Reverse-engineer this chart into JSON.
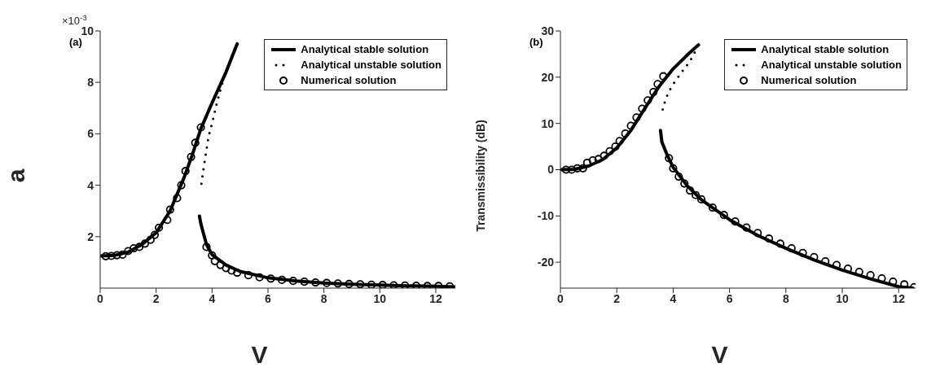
{
  "chart_data": [
    {
      "type": "line",
      "xlabel": "V",
      "ylabel": "a",
      "annotations": [
        "(a)",
        "×10$^{-3}$"
      ],
      "xlim": [
        0,
        12.7
      ],
      "xticks": [
        0,
        2,
        4,
        6,
        8,
        10,
        12
      ],
      "ylim": [
        0,
        10
      ],
      "yticks": [
        2,
        4,
        6,
        8,
        10
      ],
      "legend": "top right",
      "grid": false,
      "series": [
        {
          "name": "Analytical stable solution",
          "type": "line",
          "line_style": "solid",
          "marker": "none",
          "color": "#000000",
          "x": [
            0,
            0.5,
            1,
            1.5,
            2,
            2.5,
            3,
            3.3,
            3.6,
            4,
            4.5,
            4.9
          ],
          "values": [
            1.25,
            1.27,
            1.4,
            1.7,
            2.15,
            3.0,
            4.3,
            5.2,
            6.2,
            7.2,
            8.4,
            9.5
          ]
        },
        {
          "type": "line",
          "line_style": "solid",
          "marker": "none",
          "color": "#000000",
          "x": [
            3.55,
            3.6,
            3.8,
            4,
            4.5,
            5,
            6,
            7,
            8,
            9,
            10,
            11,
            12,
            12.7
          ],
          "values": [
            2.8,
            2.5,
            1.7,
            1.3,
            0.9,
            0.65,
            0.4,
            0.28,
            0.2,
            0.15,
            0.12,
            0.09,
            0.07,
            0.05
          ]
        },
        {
          "name": "Analytical unstable solution",
          "type": "line",
          "line_style": "dotted",
          "marker": "none",
          "color": "#000000",
          "x": [
            3.62,
            3.68,
            3.74,
            3.88,
            4.02,
            4.15,
            4.34,
            4.54,
            4.73,
            4.89
          ],
          "values": [
            4.06,
            4.54,
            4.96,
            5.92,
            6.48,
            7.1,
            7.88,
            8.5,
            9.08,
            9.53
          ]
        },
        {
          "name": "Numerical solution",
          "type": "scatter",
          "marker": "circle",
          "color": "#000000",
          "x": [
            0.2,
            0.4,
            0.6,
            0.8,
            1.0,
            1.2,
            1.4,
            1.6,
            1.8,
            1.95,
            2.1,
            2.4,
            2.5,
            2.75,
            2.9,
            3.05,
            3.25,
            3.4,
            3.6,
            3.8,
            4.0,
            4.1,
            4.3,
            4.5,
            4.7,
            4.9,
            5.3,
            5.7,
            6.1,
            6.5,
            6.9,
            7.3,
            7.7,
            8.1,
            8.5,
            8.9,
            9.3,
            9.7,
            10.1,
            10.5,
            10.9,
            11.3,
            11.7,
            12.1,
            12.5
          ],
          "values": [
            1.24,
            1.25,
            1.28,
            1.3,
            1.44,
            1.55,
            1.6,
            1.73,
            1.88,
            2.07,
            2.35,
            2.65,
            3.05,
            3.5,
            4.0,
            4.55,
            5.1,
            5.65,
            6.25,
            1.6,
            1.27,
            1.05,
            0.9,
            0.78,
            0.68,
            0.6,
            0.5,
            0.42,
            0.37,
            0.32,
            0.28,
            0.25,
            0.22,
            0.2,
            0.18,
            0.16,
            0.15,
            0.13,
            0.12,
            0.11,
            0.1,
            0.09,
            0.08,
            0.08,
            0.07
          ]
        }
      ]
    },
    {
      "type": "line",
      "xlabel": "V",
      "ylabel": "Transmissibility (dB)",
      "annotations": [
        "(b)"
      ],
      "xlim": [
        0,
        12.6
      ],
      "xticks": [
        0,
        2,
        4,
        6,
        8,
        10,
        12
      ],
      "ylim": [
        -25.6,
        30
      ],
      "yticks": [
        -20,
        -10,
        0,
        10,
        20,
        30
      ],
      "legend": "top right",
      "grid": false,
      "series": [
        {
          "name": "Analytical stable solution",
          "type": "line",
          "line_style": "solid",
          "marker": "none",
          "color": "#000000",
          "x": [
            0,
            0.5,
            1,
            1.5,
            2,
            2.5,
            3,
            3.5,
            4,
            4.5,
            4.9
          ],
          "values": [
            0,
            0.1,
            0.8,
            2.2,
            4.7,
            8.5,
            13.3,
            18,
            21.8,
            24.8,
            27
          ]
        },
        {
          "type": "line",
          "line_style": "solid",
          "marker": "none",
          "color": "#000000",
          "x": [
            3.55,
            3.6,
            3.8,
            4,
            4.5,
            5,
            6,
            7,
            8,
            9,
            10,
            11,
            12,
            12.5
          ],
          "values": [
            8.5,
            6,
            3,
            0.5,
            -3.5,
            -6.5,
            -10.8,
            -14.2,
            -17,
            -19.5,
            -21.7,
            -23.6,
            -25.3,
            -25.6
          ]
        },
        {
          "name": "Analytical unstable solution",
          "type": "line",
          "line_style": "dotted",
          "marker": "none",
          "color": "#000000",
          "x": [
            3.63,
            3.72,
            3.82,
            3.95,
            4.1,
            4.25,
            4.4,
            4.58,
            4.75,
            4.9
          ],
          "values": [
            13,
            15,
            16.5,
            18,
            19.4,
            20.6,
            21.9,
            23.3,
            25.2,
            27
          ]
        },
        {
          "name": "Numerical solution",
          "type": "scatter",
          "marker": "circle",
          "color": "#000000",
          "x": [
            0.2,
            0.4,
            0.6,
            0.8,
            0.95,
            1.15,
            1.35,
            1.55,
            1.75,
            1.95,
            2.1,
            2.3,
            2.5,
            2.7,
            2.9,
            3.1,
            3.3,
            3.45,
            3.65,
            3.85,
            4.0,
            4.2,
            4.4,
            4.6,
            4.8,
            5.0,
            5.4,
            5.8,
            6.2,
            6.6,
            7.0,
            7.4,
            7.8,
            8.2,
            8.6,
            9.0,
            9.4,
            9.8,
            10.2,
            10.6,
            11.0,
            11.4,
            11.8,
            12.2,
            12.55
          ],
          "values": [
            0,
            0,
            0.3,
            0.3,
            1.5,
            2,
            2.3,
            3,
            4,
            5,
            6.2,
            7.8,
            9.5,
            11.3,
            13.2,
            15,
            16.8,
            18.5,
            20.2,
            2.5,
            0.3,
            -1.5,
            -3,
            -4.5,
            -5.5,
            -6.4,
            -8.2,
            -9.8,
            -11.2,
            -12.5,
            -13.7,
            -14.9,
            -16,
            -17,
            -18,
            -18.9,
            -19.8,
            -20.6,
            -21.4,
            -22.1,
            -22.8,
            -23.5,
            -24.2,
            -24.8,
            -25.4
          ]
        }
      ]
    }
  ]
}
